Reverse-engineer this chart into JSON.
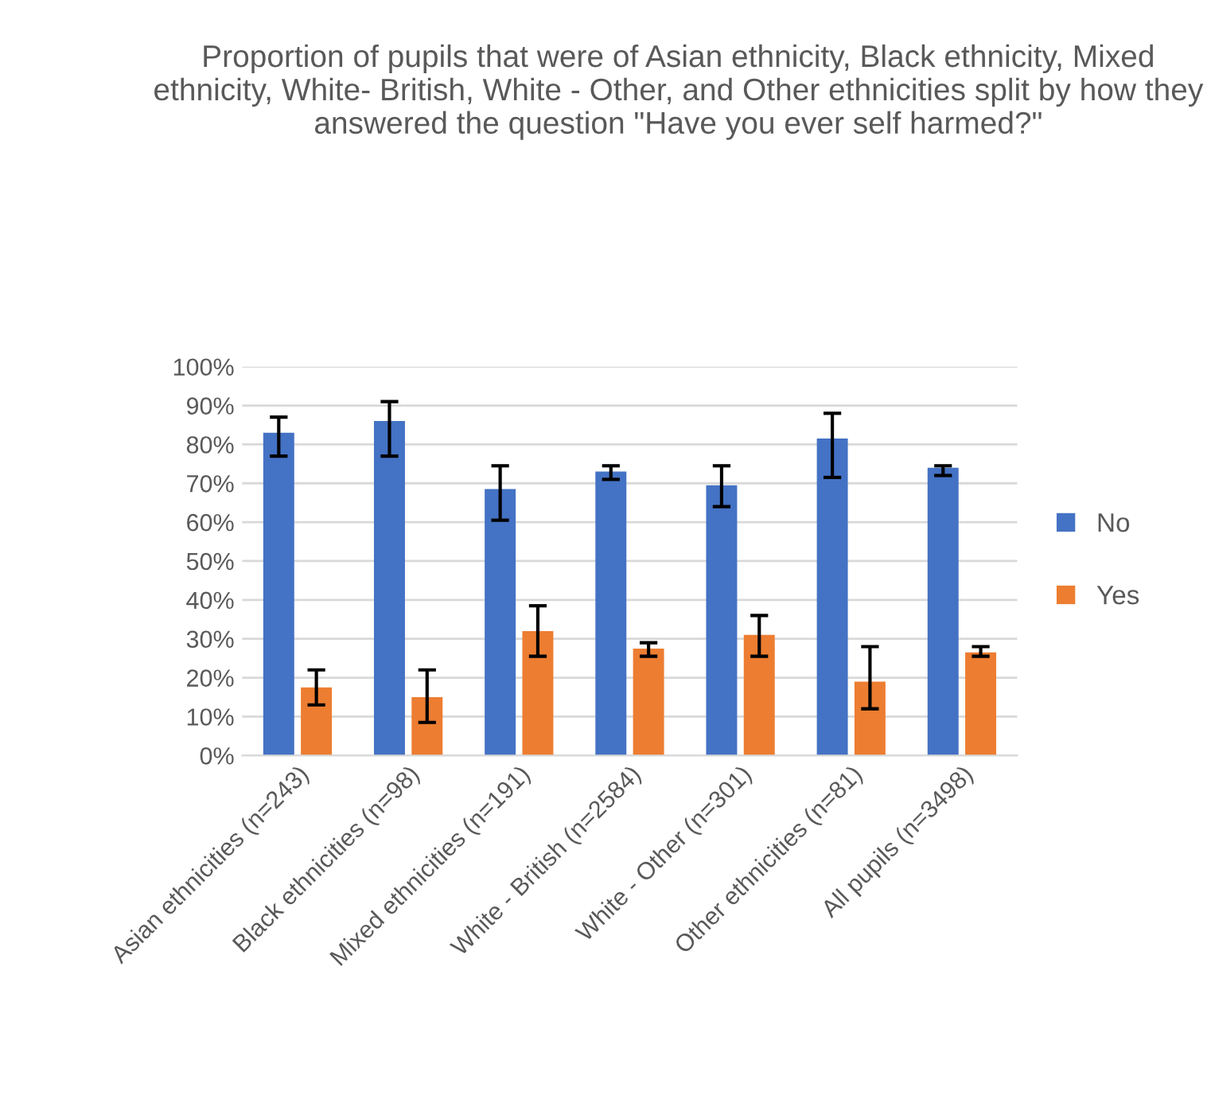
{
  "chart_data": {
    "type": "bar",
    "title": "Proportion of pupils that were of Asian ethnicity, Black ethnicity, Mixed ethnicity, White- British, White - Other, and Other ethnicities split by how they answered the question \"Have you ever self harmed?\"",
    "categories": [
      "Asian ethnicities (n=243)",
      "Black ethnicities (n=98)",
      "Mixed ethnicities (n=191)",
      "White - British (n=2584)",
      "White - Other (n=301)",
      "Other ethnicities (n=81)",
      "All pupils (n=3498)"
    ],
    "series": [
      {
        "name": "No",
        "color": "#4472c4",
        "values": [
          83,
          86,
          68.5,
          73,
          69.5,
          81.5,
          74
        ],
        "errors": [
          [
            77,
            87
          ],
          [
            77,
            91
          ],
          [
            60.5,
            74.5
          ],
          [
            71,
            74.5
          ],
          [
            64,
            74.5
          ],
          [
            71.5,
            88
          ],
          [
            72,
            74.5
          ]
        ]
      },
      {
        "name": "Yes",
        "color": "#ed7d31",
        "values": [
          17.5,
          15,
          32,
          27.5,
          31,
          19,
          26.5
        ],
        "errors": [
          [
            13,
            22
          ],
          [
            8.5,
            22
          ],
          [
            25.5,
            38.5
          ],
          [
            25.5,
            29
          ],
          [
            25.5,
            36
          ],
          [
            12,
            28
          ],
          [
            25.5,
            28
          ]
        ]
      }
    ],
    "ylim": [
      0,
      100
    ],
    "yticks": [
      {
        "value": 0,
        "label": "0%"
      },
      {
        "value": 10,
        "label": "10%"
      },
      {
        "value": 20,
        "label": "20%"
      },
      {
        "value": 30,
        "label": "30%"
      },
      {
        "value": 40,
        "label": "40%"
      },
      {
        "value": 50,
        "label": "50%"
      },
      {
        "value": 60,
        "label": "60%"
      },
      {
        "value": 70,
        "label": "70%"
      },
      {
        "value": 80,
        "label": "80%"
      },
      {
        "value": 90,
        "label": "90%"
      },
      {
        "value": 100,
        "label": "100%"
      }
    ],
    "grid": "y",
    "legend": "right"
  }
}
